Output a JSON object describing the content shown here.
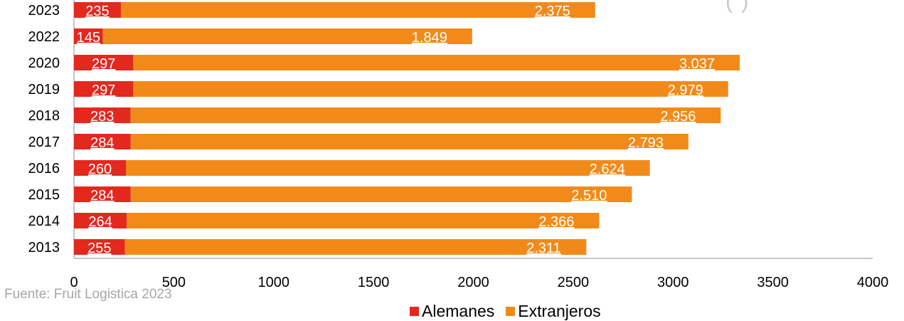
{
  "chart_data": {
    "type": "bar",
    "orientation": "horizontal",
    "stacked": true,
    "title_fragment": "(          )",
    "categories": [
      "2023",
      "2022",
      "2020",
      "2019",
      "2018",
      "2017",
      "2016",
      "2015",
      "2014",
      "2013"
    ],
    "series": [
      {
        "name": "Alemanes",
        "color": "#e3281e",
        "values": [
          235,
          145,
          297,
          297,
          283,
          284,
          260,
          284,
          264,
          255
        ],
        "labels": [
          "235",
          "145",
          "297",
          "297",
          "283",
          "284",
          "260",
          "284",
          "264",
          "255"
        ]
      },
      {
        "name": "Extranjeros",
        "color": "#f28a1a",
        "values": [
          2375,
          1849,
          3037,
          2979,
          2956,
          2793,
          2624,
          2510,
          2366,
          2311
        ],
        "labels": [
          "2.375",
          "1.849",
          "3.037",
          "2.979",
          "2.956",
          "2.793",
          "2.624",
          "2.510",
          "2.366",
          "2.311"
        ]
      }
    ],
    "xlim": [
      0,
      4000
    ],
    "xticks": [
      "0",
      "500",
      "1000",
      "1500",
      "2000",
      "2500",
      "3000",
      "3500",
      "4000"
    ],
    "grid": false,
    "legend_position": "bottom"
  },
  "source": "Fuente: Fruit Logistica 2023"
}
